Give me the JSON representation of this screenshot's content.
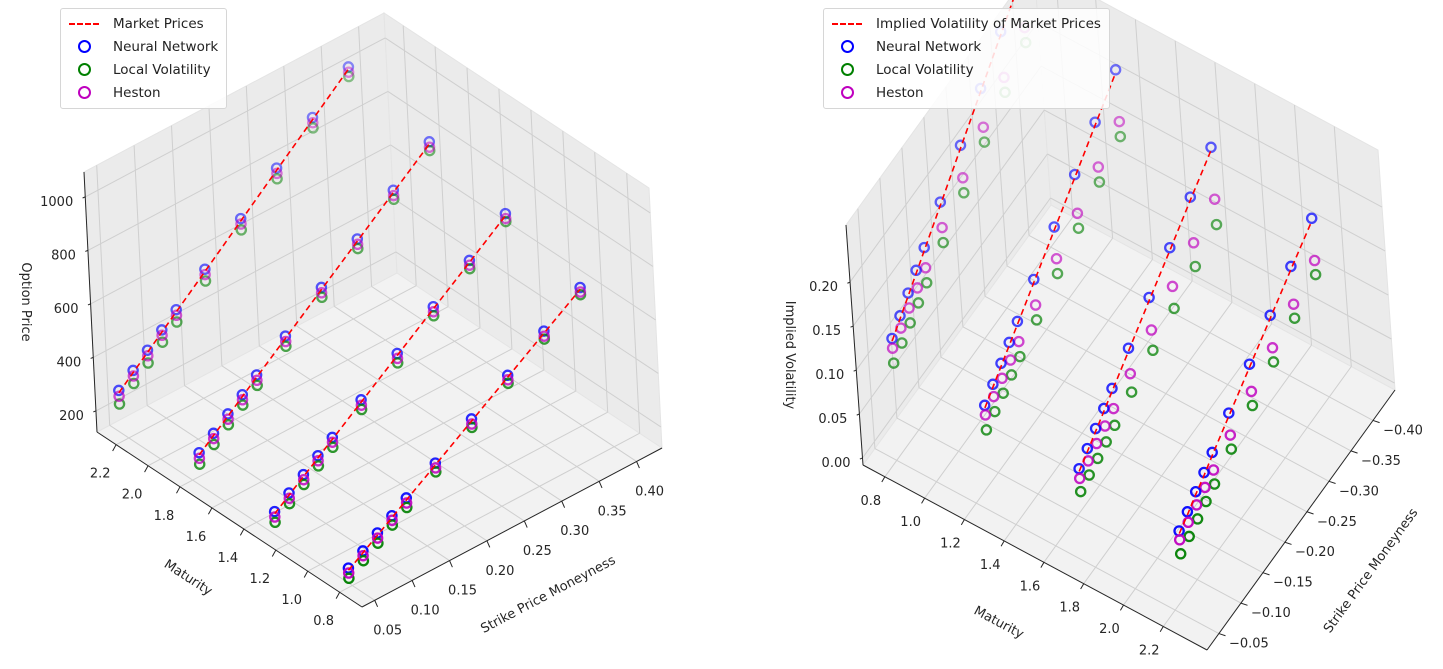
{
  "chart_data": [
    {
      "type": "scatter3d",
      "title": "",
      "xlabel": "Strike Price Moneyness",
      "ylabel": "Maturity",
      "zlabel": "Option Price",
      "xlim": [
        0.033,
        0.434
      ],
      "ylim": [
        0.66,
        2.32
      ],
      "zlim": [
        121,
        1093
      ],
      "xtick_labels": [
        "0.05",
        "0.10",
        "0.15",
        "0.20",
        "0.25",
        "0.30",
        "0.35",
        "0.40"
      ],
      "ytick_labels": [
        "0.8",
        "1.0",
        "1.2",
        "1.4",
        "1.6",
        "1.8",
        "2.0",
        "2.2"
      ],
      "ztick_labels": [
        "200",
        "400",
        "600",
        "800",
        "1000"
      ],
      "grid": true,
      "legend": {
        "placement": "top-left",
        "entries": [
          "Market Prices",
          "Neural Network",
          "Local Volatility",
          "Heston"
        ]
      },
      "strikes": [
        0.05,
        0.07,
        0.09,
        0.11,
        0.13,
        0.17,
        0.22,
        0.27,
        0.32,
        0.37
      ],
      "maturities": [
        0.82,
        1.28,
        1.75,
        2.25
      ],
      "series": [
        {
          "name": "Market Prices",
          "style": "dashed-line",
          "color": "#ff0000",
          "values": [
            [
              170,
              206,
              242,
              278,
              314,
              386,
              476,
              566,
              656,
              746
            ],
            [
              200,
              240,
              280,
              320,
              360,
              440,
              540,
              640,
              740,
              840
            ],
            [
              235,
              278,
              321,
              364,
              407,
              493,
              601,
              708,
              816,
              923
            ],
            [
              270,
              316,
              362,
              408,
              454,
              546,
              661,
              776,
              891,
              1006
            ]
          ]
        },
        {
          "name": "Neural Network",
          "style": "ring",
          "color": "#0000ff",
          "values": [
            [
              178,
              213,
              250,
              285,
              322,
              393,
              484,
              573,
              664,
              753
            ],
            [
              208,
              248,
              287,
              328,
              367,
              448,
              547,
              648,
              747,
              848
            ],
            [
              243,
              286,
              329,
              371,
              415,
              501,
              609,
              716,
              824,
              931
            ],
            [
              279,
              324,
              370,
              416,
              462,
              554,
              669,
              784,
              899,
              1014
            ]
          ]
        },
        {
          "name": "Local Volatility",
          "style": "ring",
          "color": "#008000",
          "values": [
            [
              140,
              176,
              212,
              250,
              286,
              360,
              452,
              543,
              634,
              726
            ],
            [
              168,
              208,
              250,
              290,
              330,
              412,
              512,
              614,
              716,
              818
            ],
            [
              200,
              244,
              288,
              332,
              376,
              463,
              572,
              680,
              790,
              898
            ],
            [
              228,
              275,
              322,
              370,
              416,
              510,
              627,
              744,
              860,
              978
            ]
          ]
        },
        {
          "name": "Heston",
          "style": "ring",
          "color": "#bf00bf",
          "values": [
            [
              160,
              195,
              231,
              268,
              303,
              375,
              465,
              556,
              645,
              736
            ],
            [
              188,
              228,
              268,
              309,
              349,
              428,
              529,
              629,
              729,
              829
            ],
            [
              222,
              266,
              309,
              352,
              395,
              481,
              589,
              696,
              804,
              911
            ],
            [
              257,
              303,
              349,
              396,
              441,
              534,
              649,
              764,
              879,
              994
            ]
          ]
        }
      ]
    },
    {
      "type": "scatter3d",
      "title": "",
      "xlabel": "Strike Price Moneyness",
      "ylabel": "Maturity",
      "zlabel": "Implied Volatility",
      "xlim": [
        -0.45,
        -0.023
      ],
      "ylim": [
        0.69,
        2.42
      ],
      "zlim": [
        -0.008,
        0.265
      ],
      "xtick_labels": [
        "−0.40",
        "−0.35",
        "−0.30",
        "−0.25",
        "−0.20",
        "−0.15",
        "−0.10",
        "−0.05"
      ],
      "ytick_labels": [
        "0.8",
        "1.0",
        "1.2",
        "1.4",
        "1.6",
        "1.8",
        "2.0",
        "2.2"
      ],
      "ztick_labels": [
        "0.00",
        "0.05",
        "0.10",
        "0.15",
        "0.20"
      ],
      "grid": true,
      "legend": {
        "placement": "top-left",
        "entries": [
          "Implied Volatility of Market Prices",
          "Neural Network",
          "Local Volatility",
          "Heston"
        ]
      },
      "strikes": [
        -0.05,
        -0.07,
        -0.09,
        -0.11,
        -0.13,
        -0.17,
        -0.22,
        -0.27,
        -0.32,
        -0.37
      ],
      "maturities": [
        0.82,
        1.28,
        1.75,
        2.25
      ],
      "series": [
        {
          "name": "Implied Volatility of Market Prices",
          "style": "dashed-line",
          "color": "#ff0000",
          "values": [
            [
              0.13,
              0.142,
              0.154,
              0.166,
              0.178,
              0.202,
              0.232,
              0.262,
              0.292,
              0.322
            ],
            [
              0.11,
              0.12,
              0.13,
              0.14,
              0.15,
              0.17,
              0.195,
              0.22,
              0.245,
              0.27
            ],
            [
              0.095,
              0.104,
              0.113,
              0.122,
              0.131,
              0.149,
              0.172,
              0.194,
              0.217,
              0.239
            ],
            [
              0.085,
              0.093,
              0.102,
              0.11,
              0.119,
              0.136,
              0.157,
              0.178,
              0.199,
              0.219
            ]
          ]
        },
        {
          "name": "Neural Network",
          "style": "ring",
          "color": "#0000ff",
          "values": [
            [
              0.133,
              0.145,
              0.157,
              0.169,
              0.181,
              0.205,
              0.235,
              0.265,
              0.295,
              0.325
            ],
            [
              0.113,
              0.123,
              0.133,
              0.143,
              0.153,
              0.173,
              0.198,
              0.223,
              0.248,
              0.273
            ],
            [
              0.098,
              0.107,
              0.116,
              0.125,
              0.134,
              0.152,
              0.175,
              0.197,
              0.22,
              0.242
            ],
            [
              0.088,
              0.096,
              0.105,
              0.113,
              0.122,
              0.139,
              0.16,
              0.181,
              0.202,
              0.222
            ]
          ]
        },
        {
          "name": "Local Volatility",
          "style": "ring",
          "color": "#008000",
          "values": [
            [
              0.105,
              0.114,
              0.123,
              0.132,
              0.141,
              0.159,
              0.181,
              0.204,
              0.226,
              0.248
            ],
            [
              0.085,
              0.092,
              0.099,
              0.106,
              0.113,
              0.127,
              0.145,
              0.162,
              0.18,
              0.197
            ],
            [
              0.072,
              0.077,
              0.082,
              0.087,
              0.092,
              0.102,
              0.115,
              0.128,
              0.141,
              0.154
            ],
            [
              0.062,
              0.068,
              0.074,
              0.08,
              0.086,
              0.098,
              0.113,
              0.128,
              0.143,
              0.158
            ]
          ]
        },
        {
          "name": "Heston",
          "style": "ring",
          "color": "#bf00bf",
          "values": [
            [
              0.122,
              0.131,
              0.14,
              0.149,
              0.158,
              0.176,
              0.198,
              0.221,
              0.243,
              0.265
            ],
            [
              0.102,
              0.109,
              0.116,
              0.123,
              0.13,
              0.144,
              0.162,
              0.179,
              0.197,
              0.214
            ],
            [
              0.087,
              0.093,
              0.099,
              0.105,
              0.111,
              0.123,
              0.138,
              0.153,
              0.168,
              0.183
            ],
            [
              0.078,
              0.084,
              0.09,
              0.096,
              0.102,
              0.114,
              0.129,
              0.144,
              0.159,
              0.174
            ]
          ]
        }
      ]
    }
  ]
}
